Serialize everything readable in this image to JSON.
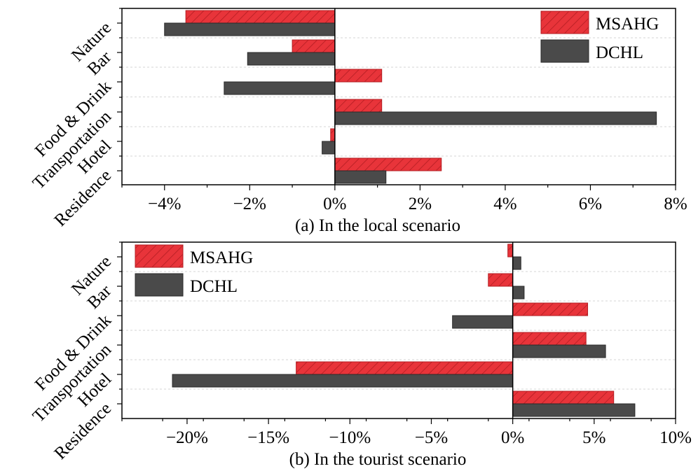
{
  "colors": {
    "msahg": "#e8343a",
    "msahg_hatch": "#b31d22",
    "dchl": "#4a4a4a",
    "dchl_edge": "#2a2a2a"
  },
  "chart_data": [
    {
      "type": "bar",
      "orientation": "horizontal",
      "caption": "(a) In the local scenario",
      "categories": [
        "Nature",
        "Bar",
        "Food & Drink",
        "Transportation",
        "Hotel",
        "Residence"
      ],
      "series": [
        {
          "name": "MSAHG",
          "values": [
            -3.5,
            -1.0,
            1.1,
            1.1,
            -0.1,
            2.5
          ]
        },
        {
          "name": "DCHL",
          "values": [
            -4.0,
            -2.05,
            -2.6,
            7.55,
            -0.3,
            1.2
          ]
        }
      ],
      "xlim": [
        -5,
        8
      ],
      "xticks": [
        -4,
        -2,
        0,
        2,
        4,
        6,
        8
      ],
      "tick_labels": [
        "−4%",
        "−2%",
        "0%",
        "2%",
        "4%",
        "6%",
        "8%"
      ],
      "legend": [
        "MSAHG",
        "DCHL"
      ],
      "legend_position": "top-right"
    },
    {
      "type": "bar",
      "orientation": "horizontal",
      "caption": "(b) In the tourist scenario",
      "categories": [
        "Nature",
        "Bar",
        "Food & Drink",
        "Transportation",
        "Hotel",
        "Residence"
      ],
      "series": [
        {
          "name": "MSAHG",
          "values": [
            -0.3,
            -1.5,
            4.6,
            4.5,
            -13.3,
            6.2
          ]
        },
        {
          "name": "DCHL",
          "values": [
            0.5,
            0.7,
            -3.7,
            5.7,
            -20.9,
            7.5
          ]
        }
      ],
      "xlim": [
        -24,
        10
      ],
      "xticks": [
        -20,
        -15,
        -10,
        -5,
        0,
        5,
        10
      ],
      "tick_labels": [
        "−20%",
        "−15%",
        "−10%",
        "−5%",
        "0%",
        "5%",
        "10%"
      ],
      "legend": [
        "MSAHG",
        "DCHL"
      ],
      "legend_position": "top-left"
    }
  ]
}
